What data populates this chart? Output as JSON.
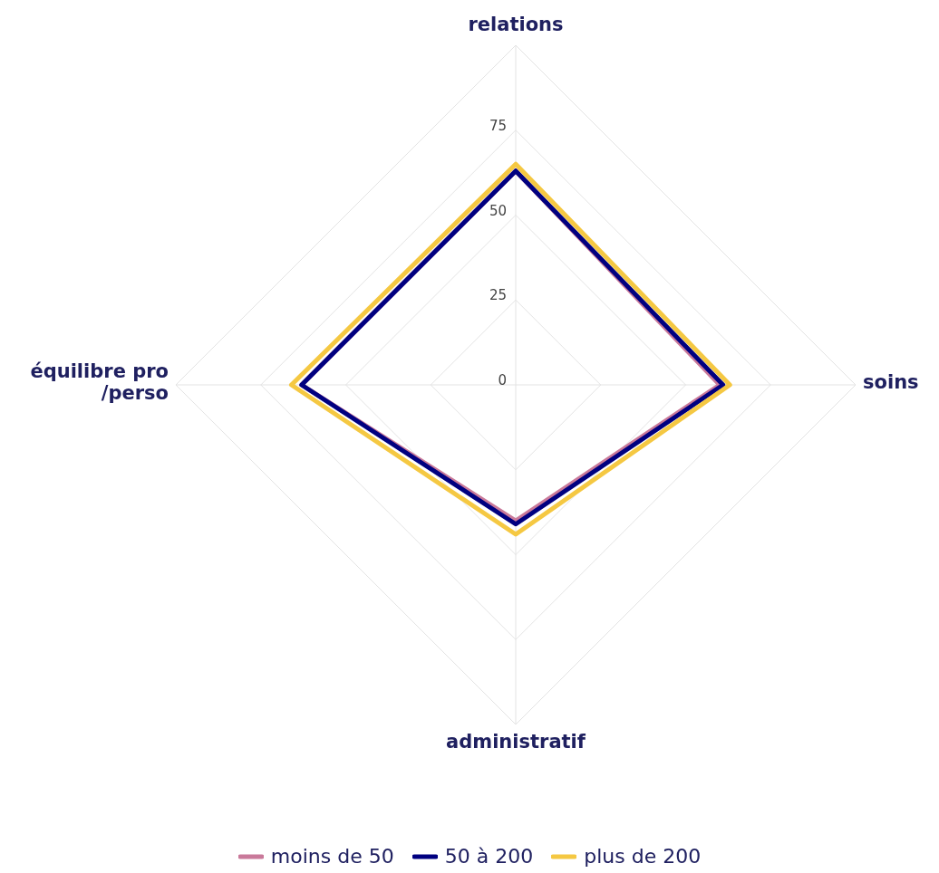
{
  "chart_data": {
    "type": "radar",
    "categories": [
      "relations",
      "soins",
      "administratif",
      "équilibre pro /perso"
    ],
    "series": [
      {
        "name": "moins de 50",
        "color": "#c9799a",
        "values": [
          63,
          60,
          40,
          63
        ]
      },
      {
        "name": "50 à 200",
        "color": "#000080",
        "values": [
          63,
          61,
          41,
          63
        ]
      },
      {
        "name": "plus de 200",
        "color": "#f5c842",
        "values": [
          65,
          63,
          44,
          66
        ]
      }
    ],
    "ylim": [
      0,
      100
    ],
    "yticks": [
      0,
      25,
      50,
      75
    ],
    "grid": true,
    "legend": "bottom",
    "marker": "none"
  }
}
